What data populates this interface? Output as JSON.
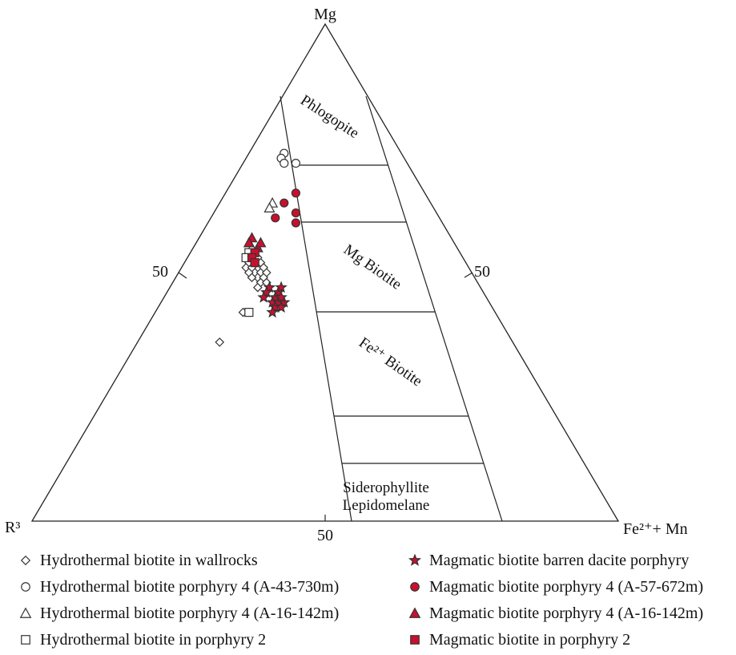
{
  "chart_data": {
    "type": "scatter",
    "subtype": "ternary",
    "apex_labels": {
      "top": "Mg",
      "left": "R³",
      "right": "Fe²⁺+ Mn"
    },
    "axis_ticks": {
      "left": "50",
      "right": "50",
      "bottom": "50"
    },
    "fields": [
      {
        "name": "Phlogopite"
      },
      {
        "name": "Mg Biotite"
      },
      {
        "name": "Fe²⁺ Biotite"
      },
      {
        "name": "Siderophyllite"
      },
      {
        "name": "Lepidomelane"
      }
    ],
    "series": [
      {
        "name": "Hydrothermal biotite in wallrocks",
        "marker": "diamond",
        "fill": "#ffffff",
        "stroke": "#333333",
        "points": [
          [
            53,
            36,
            11
          ],
          [
            52,
            37,
            11
          ],
          [
            51,
            38,
            11
          ],
          [
            51,
            36,
            13
          ],
          [
            50,
            37,
            13
          ],
          [
            50,
            36,
            14
          ],
          [
            49,
            37,
            14
          ],
          [
            52,
            35,
            13
          ],
          [
            50,
            35,
            15
          ],
          [
            49,
            36,
            15
          ],
          [
            51,
            37,
            12
          ],
          [
            52,
            36,
            12
          ],
          [
            48,
            37,
            15
          ],
          [
            50,
            38,
            12
          ],
          [
            49,
            38,
            13
          ],
          [
            51,
            35,
            14
          ],
          [
            53,
            35,
            12
          ],
          [
            48,
            36,
            16
          ],
          [
            47,
            38,
            15
          ],
          [
            42,
            43,
            15
          ],
          [
            36,
            50,
            14
          ]
        ]
      },
      {
        "name": "Hydrothermal biotite porphyry 4 (A-43-730m)",
        "marker": "circle",
        "fill": "#ffffff",
        "stroke": "#333333",
        "points": [
          [
            74,
            20,
            6
          ],
          [
            73,
            21,
            6
          ],
          [
            72,
            21,
            7
          ],
          [
            72,
            19,
            9
          ]
        ]
      },
      {
        "name": "Hydrothermal biotite porphyry 4 (A-16-142m)",
        "marker": "triangle",
        "fill": "#ffffff",
        "stroke": "#333333",
        "points": [
          [
            64,
            27,
            9
          ],
          [
            63,
            28,
            9
          ],
          [
            55,
            35,
            10
          ]
        ]
      },
      {
        "name": "Hydrothermal biotite in porphyry 2",
        "marker": "square",
        "fill": "#ffffff",
        "stroke": "#333333",
        "points": [
          [
            54,
            36,
            10
          ],
          [
            53,
            37,
            10
          ],
          [
            42,
            42,
            16
          ]
        ]
      },
      {
        "name": "Magmatic biotite barren dacite porphyry",
        "marker": "star",
        "fill": "#c8102e",
        "stroke": "#333333",
        "points": [
          [
            47,
            36,
            17
          ],
          [
            46,
            37,
            17
          ],
          [
            45,
            38,
            17
          ],
          [
            45,
            36,
            19
          ],
          [
            44,
            37,
            19
          ],
          [
            44,
            36,
            20
          ],
          [
            43,
            37,
            20
          ],
          [
            46,
            35,
            19
          ],
          [
            44,
            35,
            21
          ],
          [
            43,
            36,
            21
          ],
          [
            42,
            38,
            20
          ],
          [
            47,
            34,
            19
          ],
          [
            45,
            35,
            20
          ]
        ]
      },
      {
        "name": "Magmatic biotite porphyry 4 (A-57-672m)",
        "marker": "circle",
        "fill": "#c8102e",
        "stroke": "#333333",
        "points": [
          [
            66,
            22,
            12
          ],
          [
            64,
            25,
            11
          ],
          [
            62,
            24,
            14
          ],
          [
            60,
            25,
            15
          ],
          [
            61,
            28,
            11
          ]
        ]
      },
      {
        "name": "Magmatic biotite porphyry 4 (A-16-142m)",
        "marker": "triangle",
        "fill": "#c8102e",
        "stroke": "#333333",
        "points": [
          [
            57,
            34,
            9
          ],
          [
            56,
            35,
            9
          ],
          [
            55,
            34,
            11
          ],
          [
            56,
            33,
            11
          ]
        ]
      },
      {
        "name": "Magmatic biotite in porphyry 2",
        "marker": "square",
        "fill": "#c8102e",
        "stroke": "#333333",
        "points": [
          [
            54,
            35,
            11
          ],
          [
            53,
            36,
            11
          ],
          [
            52,
            36,
            12
          ]
        ]
      }
    ]
  }
}
